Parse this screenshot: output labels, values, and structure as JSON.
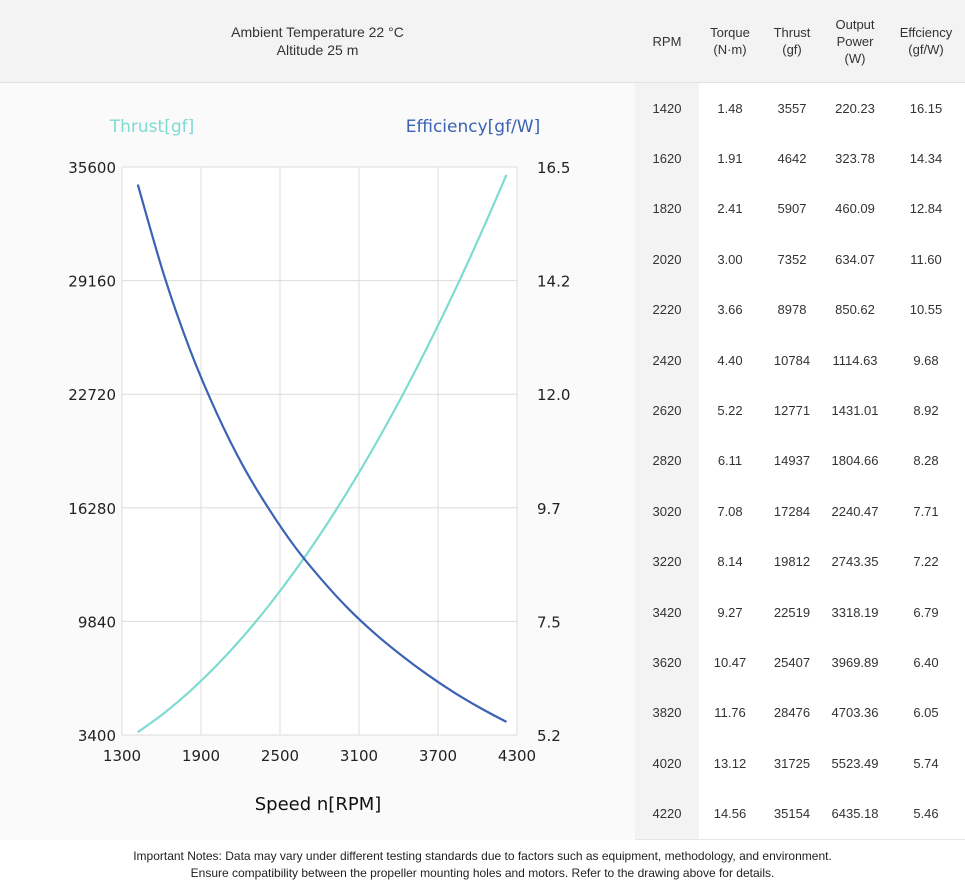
{
  "header": {
    "ambient": "Ambient Temperature 22 °C",
    "altitude": "Altitude 25 m"
  },
  "table": {
    "columns": [
      {
        "key": "rpm",
        "lines": [
          "RPM"
        ]
      },
      {
        "key": "torque",
        "lines": [
          "Torque",
          "(N·m)"
        ]
      },
      {
        "key": "thrust",
        "lines": [
          "Thrust",
          "(gf)"
        ]
      },
      {
        "key": "power",
        "lines": [
          "Output",
          "Power",
          "(W)"
        ]
      },
      {
        "key": "eff",
        "lines": [
          "Effciency",
          "(gf/W)"
        ]
      }
    ],
    "rows": [
      [
        "1420",
        "1.48",
        "3557",
        "220.23",
        "16.15"
      ],
      [
        "1620",
        "1.91",
        "4642",
        "323.78",
        "14.34"
      ],
      [
        "1820",
        "2.41",
        "5907",
        "460.09",
        "12.84"
      ],
      [
        "2020",
        "3.00",
        "7352",
        "634.07",
        "11.60"
      ],
      [
        "2220",
        "3.66",
        "8978",
        "850.62",
        "10.55"
      ],
      [
        "2420",
        "4.40",
        "10784",
        "1114.63",
        "9.68"
      ],
      [
        "2620",
        "5.22",
        "12771",
        "1431.01",
        "8.92"
      ],
      [
        "2820",
        "6.11",
        "14937",
        "1804.66",
        "8.28"
      ],
      [
        "3020",
        "7.08",
        "17284",
        "2240.47",
        "7.71"
      ],
      [
        "3220",
        "8.14",
        "19812",
        "2743.35",
        "7.22"
      ],
      [
        "3420",
        "9.27",
        "22519",
        "3318.19",
        "6.79"
      ],
      [
        "3620",
        "10.47",
        "25407",
        "3969.89",
        "6.40"
      ],
      [
        "3820",
        "11.76",
        "28476",
        "4703.36",
        "6.05"
      ],
      [
        "4020",
        "13.12",
        "31725",
        "5523.49",
        "5.74"
      ],
      [
        "4220",
        "14.56",
        "35154",
        "6435.18",
        "5.46"
      ]
    ]
  },
  "chart_data": {
    "type": "line",
    "xlabel": "Speed n[RPM]",
    "xlim": [
      1300,
      4300
    ],
    "x_ticks": [
      "1300",
      "1900",
      "2500",
      "3100",
      "3700",
      "4300"
    ],
    "y_left_label": "Thrust[gf]",
    "y_left_lim": [
      3400,
      35600
    ],
    "y_left_ticks": [
      "3400",
      "9840",
      "16280",
      "22720",
      "29160",
      "35600"
    ],
    "y_right_label": "Efficiency[gf/W]",
    "y_right_lim": [
      5.2,
      16.5
    ],
    "y_right_ticks": [
      "5.2",
      "7.5",
      "9.7",
      "12.0",
      "14.2",
      "16.5"
    ],
    "grid": true,
    "x": [
      1420,
      1620,
      1820,
      2020,
      2220,
      2420,
      2620,
      2820,
      3020,
      3220,
      3420,
      3620,
      3820,
      4020,
      4220
    ],
    "series": [
      {
        "name": "Thrust[gf]",
        "axis": "left",
        "color": "#7fdbd2",
        "values": [
          3557,
          4642,
          5907,
          7352,
          8978,
          10784,
          12771,
          14937,
          17284,
          19812,
          22519,
          25407,
          28476,
          31725,
          35154
        ]
      },
      {
        "name": "Efficiency[gf/W]",
        "axis": "right",
        "color": "#3b62b3",
        "values": [
          16.15,
          14.34,
          12.84,
          11.6,
          10.55,
          9.68,
          8.92,
          8.28,
          7.71,
          7.22,
          6.79,
          6.4,
          6.05,
          5.74,
          5.46
        ]
      }
    ]
  },
  "notes": {
    "line1": "Important Notes: Data may vary under different testing standards due to factors such as equipment, methodology, and environment.",
    "line2": "Ensure compatibility between the propeller mounting holes and motors. Refer to the drawing above for details."
  }
}
